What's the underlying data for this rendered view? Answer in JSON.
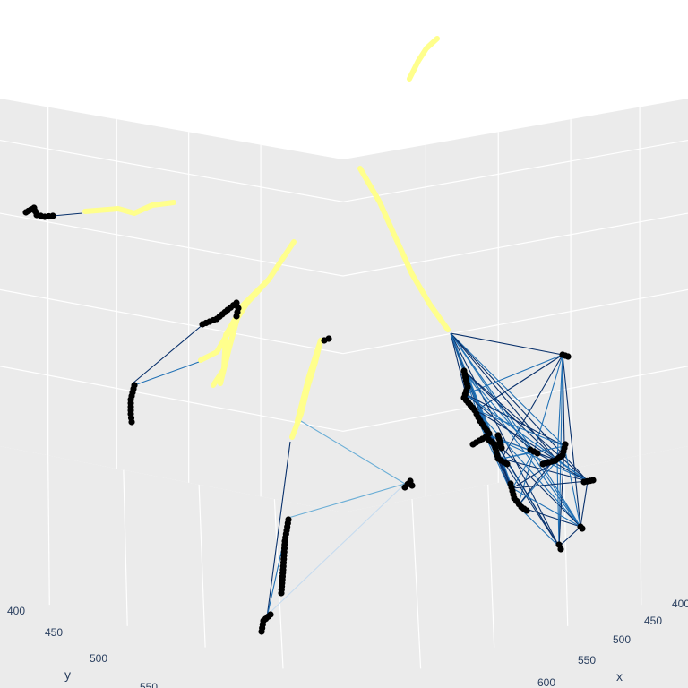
{
  "chart_data": {
    "type": "scatter3d",
    "title": "",
    "axes": {
      "x": {
        "title": "x",
        "ticks": [
          "400",
          "450",
          "500",
          "550",
          "600"
        ]
      },
      "y": {
        "title": "y",
        "ticks": [
          "400",
          "450",
          "500",
          "550"
        ]
      }
    },
    "scene": {
      "background": "#ebebeb",
      "grid": true,
      "gridcolor": "#ffffff",
      "legend": "none"
    },
    "series": [
      {
        "mode": "markers",
        "color": "#ffff8c",
        "role": "trajectory"
      },
      {
        "mode": "markers",
        "color": "#000000",
        "role": "particles"
      },
      {
        "mode": "lines",
        "colorscale": [
          "#c6dbef",
          "#6baed6",
          "#2171b5",
          "#08306b"
        ],
        "role": "links"
      }
    ]
  }
}
